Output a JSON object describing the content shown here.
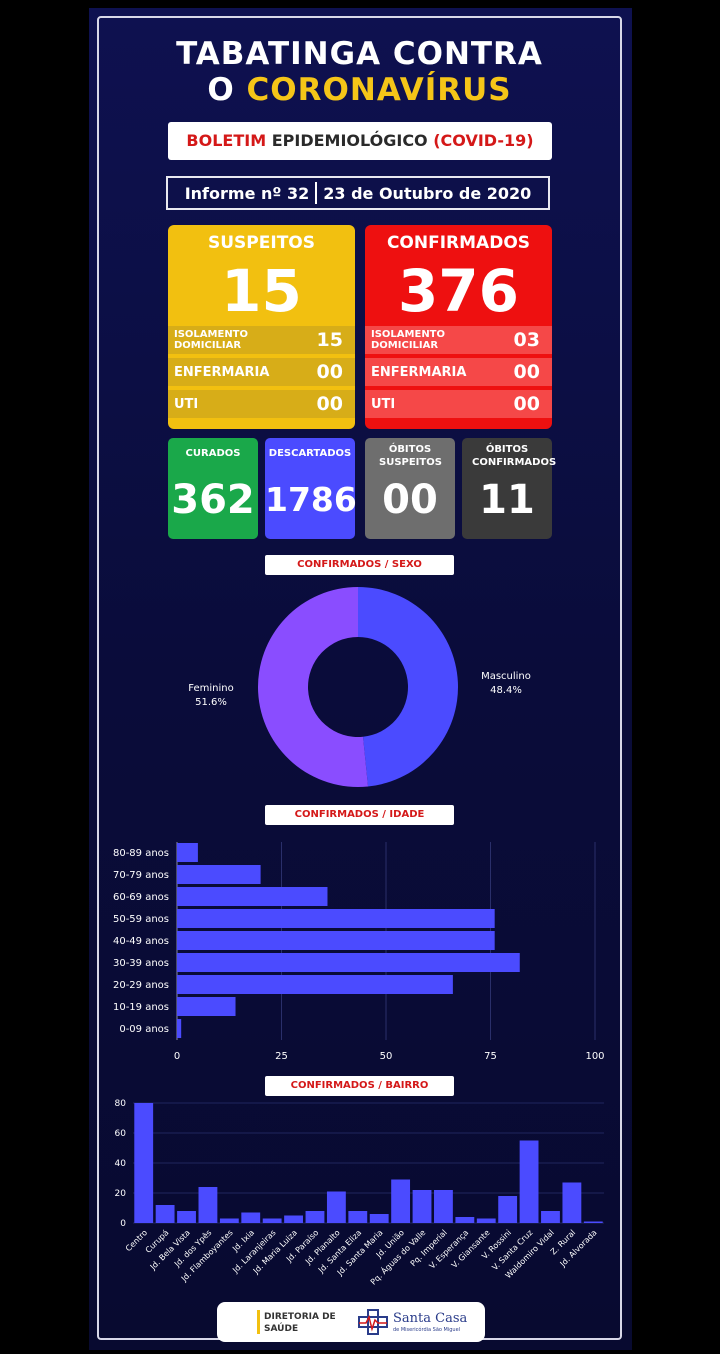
{
  "header": {
    "title_line1": "TABATINGA CONTRA",
    "title_line2_prefix": "O",
    "title_line2_highlight": "CORONAVÍRUS"
  },
  "bulletin": {
    "red": "BOLETIM",
    "dark": "EPIDEMIOLÓGICO",
    "red2": "(COVID-19)"
  },
  "informe": {
    "number": "Informe nº 32",
    "date": "23 de Outubro  de 2020"
  },
  "suspeitos": {
    "title": "SUSPEITOS",
    "total": "15",
    "rows": [
      {
        "label": "ISOLAMENTO DOMICILIAR",
        "value": "15"
      },
      {
        "label": "ENFERMARIA",
        "value": "00"
      },
      {
        "label": "UTI",
        "value": "00"
      }
    ]
  },
  "confirmados": {
    "title": "CONFIRMADOS",
    "total": "376",
    "rows": [
      {
        "label": "ISOLAMENTO DOMICILIAR",
        "value": "03"
      },
      {
        "label": "ENFERMARIA",
        "value": "00"
      },
      {
        "label": "UTI",
        "value": "00"
      }
    ]
  },
  "stats": [
    {
      "title": "CURADOS",
      "value": "362",
      "color": "#1aa84a"
    },
    {
      "title": "DESCARTADOS",
      "value": "1786",
      "color": "#4b4bff"
    },
    {
      "title": "ÓBITOS SUSPEITOS",
      "value": "00",
      "color": "#6e6e6e"
    },
    {
      "title": "ÓBITOS CONFIRMADOS",
      "value": "11",
      "color": "#3a3a3a"
    }
  ],
  "section_titles": {
    "sexo": "CONFIRMADOS / SEXO",
    "idade": "CONFIRMADOS / IDADE",
    "bairro": "CONFIRMADOS / BAIRRO"
  },
  "footer": {
    "dir_line1": "DIRETORIA DE",
    "dir_line2": "SAÚDE",
    "brand": "Santa Casa",
    "brand_sub": "de Misericórdia São Miguel"
  },
  "chart_data": [
    {
      "type": "pie",
      "title": "CONFIRMADOS / SEXO",
      "slices": [
        {
          "name": "Masculino",
          "label": "48.4%",
          "value": 48.4,
          "color": "#4b4bff"
        },
        {
          "name": "Feminino",
          "label": "51.6%",
          "value": 51.6,
          "color": "#8a4dff"
        }
      ],
      "donut": true
    },
    {
      "type": "bar",
      "orientation": "horizontal",
      "title": "CONFIRMADOS / IDADE",
      "categories": [
        "80-89 anos",
        "70-79 anos",
        "60-69 anos",
        "50-59 anos",
        "40-49 anos",
        "30-39 anos",
        "20-29 anos",
        "10-19 anos",
        "0-09 anos"
      ],
      "values": [
        5,
        20,
        36,
        76,
        76,
        82,
        66,
        14,
        1
      ],
      "xlim": [
        0,
        100
      ],
      "xticks": [
        "0",
        "25",
        "50",
        "75",
        "100"
      ],
      "color": "#4b4bff"
    },
    {
      "type": "bar",
      "orientation": "vertical",
      "title": "CONFIRMADOS / BAIRRO",
      "categories": [
        "Centro",
        "Curupá",
        "Jd. Bela Vista",
        "Jd. dos Ypês",
        "Jd. Flamboyantes",
        "Jd. Ixia",
        "Jd. Laranjeiras",
        "Jd. Maria Luiza",
        "Jd. Paraíso",
        "Jd. Planalto",
        "Jd. Santa Eliza",
        "Jd. Santa Maria",
        "Jd. União",
        "Pq. Águas do Valle",
        "Pq. Imperial",
        "V. Esperança",
        "V. Giansante",
        "V. Rossini",
        "V. Santa Cruz",
        "Waldomiro Vidal",
        "Z. Rural",
        "Jd. Alvorada"
      ],
      "values": [
        80,
        12,
        8,
        24,
        3,
        7,
        3,
        5,
        8,
        21,
        8,
        6,
        29,
        22,
        22,
        4,
        3,
        18,
        55,
        8,
        27,
        1
      ],
      "ylim": [
        0,
        80
      ],
      "yticks": [
        "0",
        "20",
        "40",
        "60",
        "80"
      ],
      "color": "#4b4bff"
    }
  ]
}
